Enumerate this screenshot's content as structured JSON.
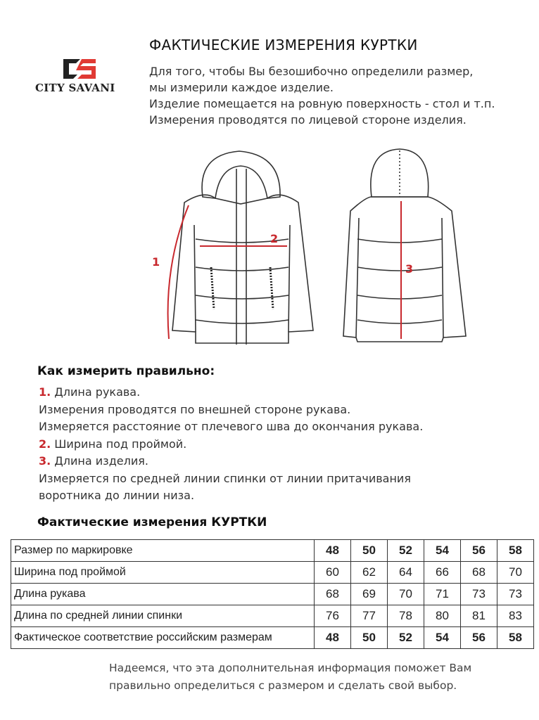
{
  "brand": {
    "name": "CITY SAVANI",
    "colors": {
      "red": "#e03a34",
      "black": "#222222"
    }
  },
  "header": {
    "title": "ФАКТИЧЕСКИЕ ИЗМЕРЕНИЯ КУРТКИ",
    "intro": [
      "Для того, чтобы Вы безошибочно определили размер,",
      "мы измерили каждое изделие.",
      "Изделие помещается на ровную поверхность - стол и т.п.",
      "Измерения проводятся по лицевой стороне изделия."
    ]
  },
  "diagram": {
    "labels": [
      "1",
      "2",
      "3"
    ],
    "accent": "#c8282d"
  },
  "howto": {
    "heading": "Как измерить правильно:",
    "items": [
      {
        "num": "1.",
        "text": " Длина рукава."
      },
      {
        "text": "Измерения проводятся по внешней стороне рукава."
      },
      {
        "text": "Измеряется расстояние от плечевого шва до окончания рукава."
      },
      {
        "num": "2.",
        "text": " Ширина под проймой."
      },
      {
        "num": "3.",
        "text": " Длина изделия."
      },
      {
        "text": "Измеряется по средней линии спинки от линии притачивания"
      },
      {
        "text": "воротника до линии низа."
      }
    ]
  },
  "table": {
    "heading": "Фактические измерения КУРТКИ",
    "rows": [
      {
        "label": "Размер по маркировке",
        "values": [
          "48",
          "50",
          "52",
          "54",
          "56",
          "58"
        ],
        "bold": true
      },
      {
        "label": "Ширина под проймой",
        "values": [
          "60",
          "62",
          "64",
          "66",
          "68",
          "70"
        ]
      },
      {
        "label": "Длина рукава",
        "values": [
          "68",
          "69",
          "70",
          "71",
          "73",
          "73"
        ]
      },
      {
        "label": "Длина по средней линии спинки",
        "values": [
          "76",
          "77",
          "78",
          "80",
          "81",
          "83"
        ]
      },
      {
        "label": "Фактическое соответствие российским размерам",
        "values": [
          "48",
          "50",
          "52",
          "54",
          "56",
          "58"
        ],
        "bold": true
      }
    ]
  },
  "footer": [
    "Надеемся, что эта дополнительная информация поможет Вам",
    "правильно определиться с размером и сделать свой выбор."
  ]
}
